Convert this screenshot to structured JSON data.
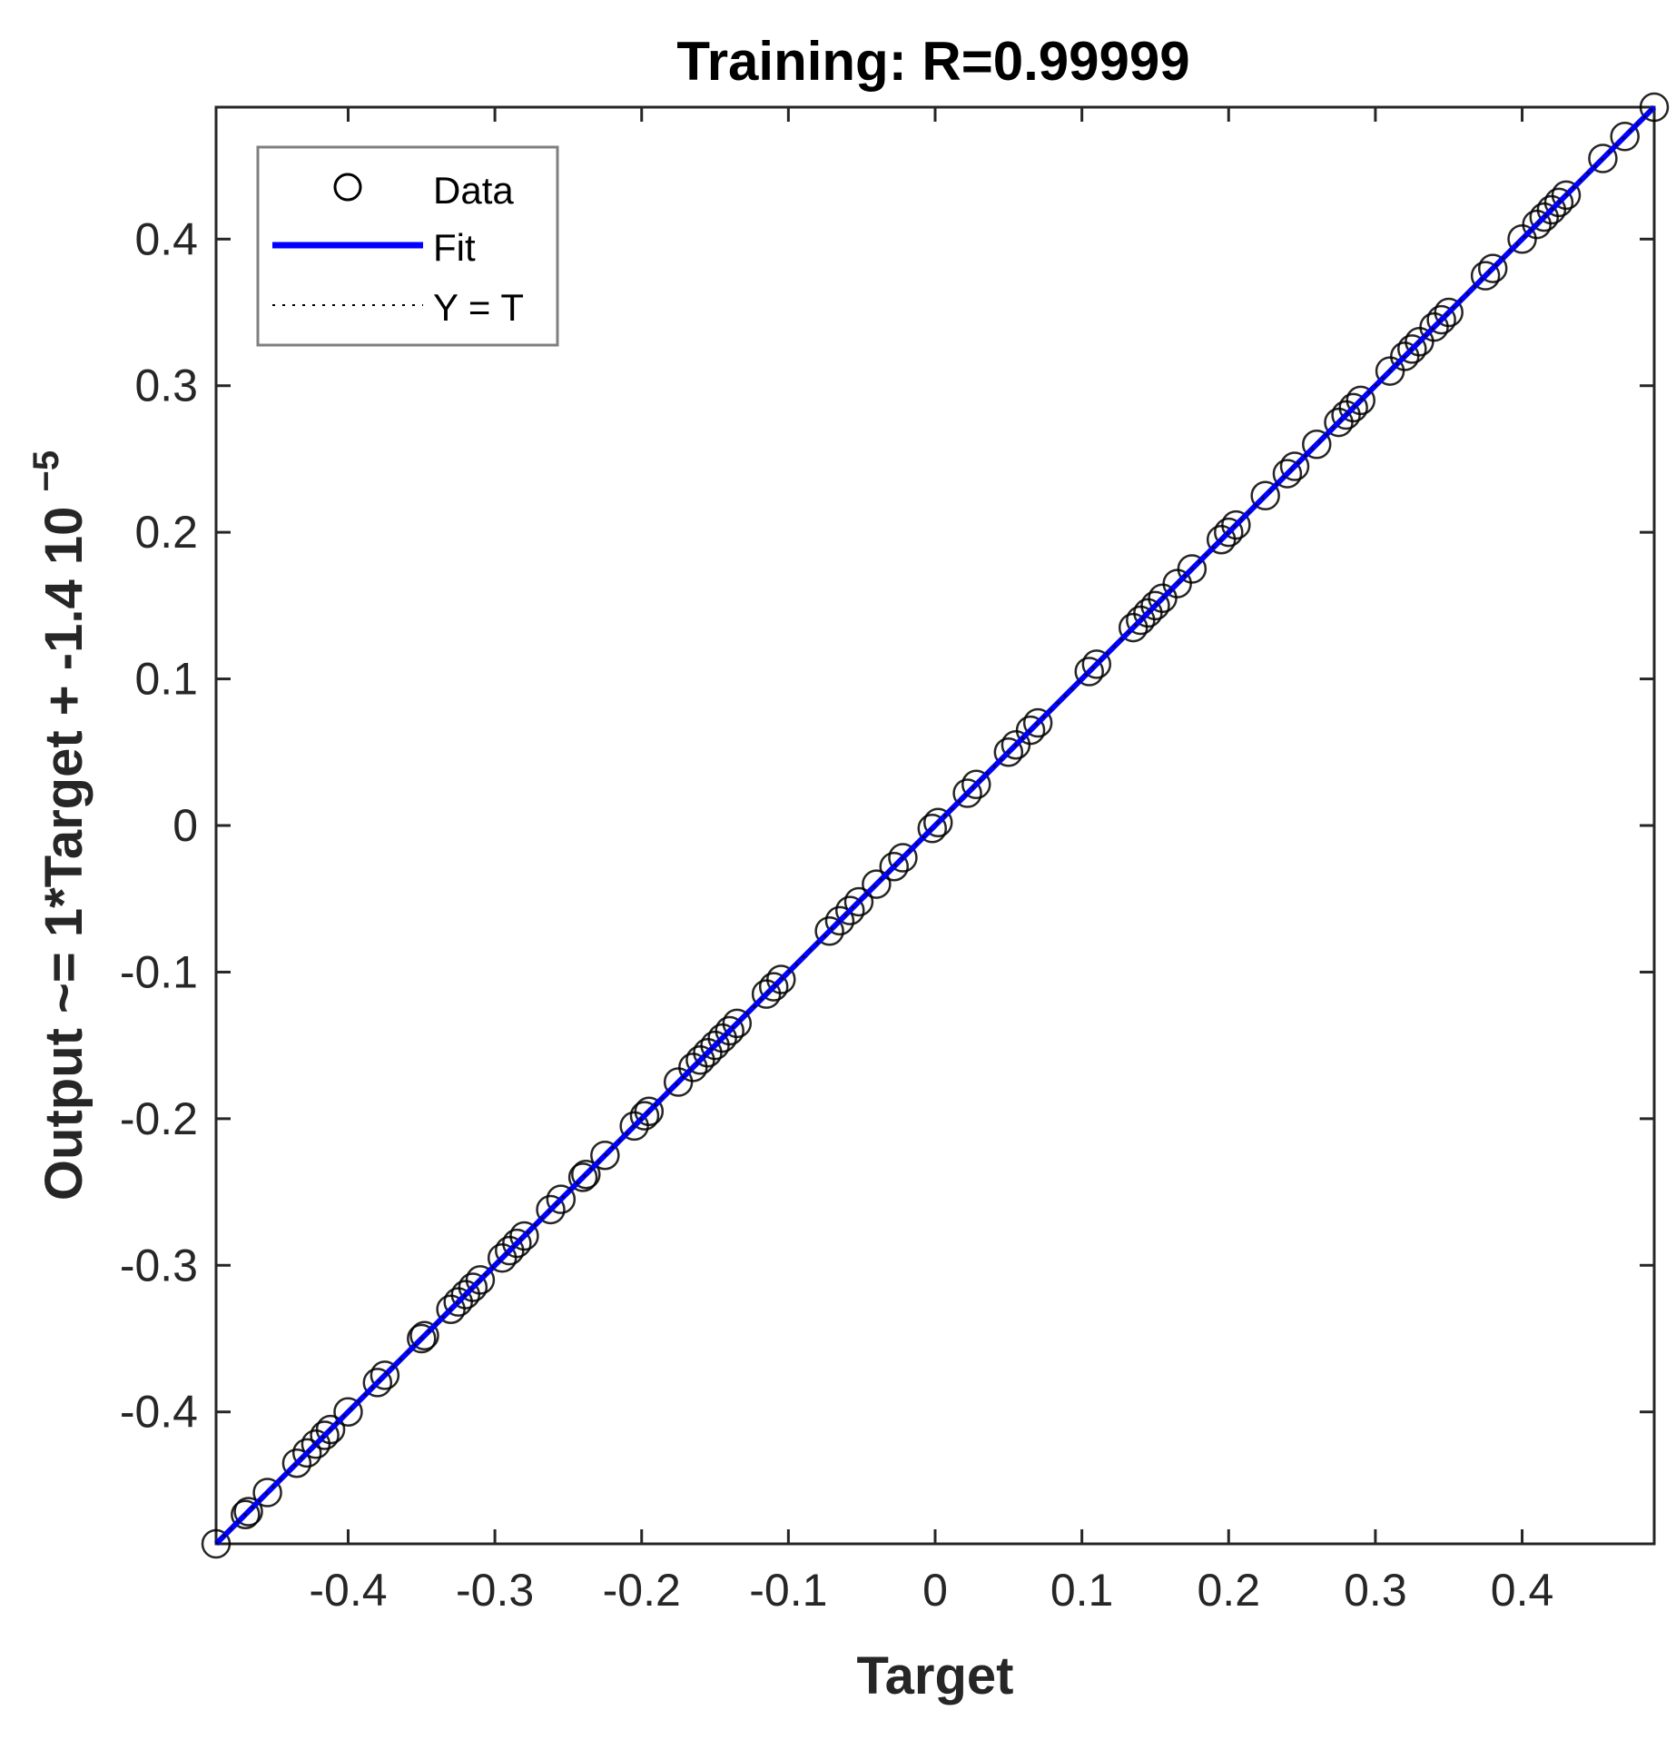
{
  "chart_data": {
    "type": "scatter",
    "title": "Training: R=0.99999",
    "xlabel": "Target",
    "ylabel": "Output ~= 1*Target + -1.4  10",
    "ylabel_exponent": "−5",
    "xlim": [
      -0.49,
      0.49
    ],
    "ylim": [
      -0.49,
      0.49
    ],
    "xticks": [
      -0.4,
      -0.3,
      -0.2,
      -0.1,
      0,
      0.1,
      0.2,
      0.3,
      0.4
    ],
    "xtick_labels": [
      "-0.4",
      "-0.3",
      "-0.2",
      "-0.1",
      "0",
      "0.1",
      "0.2",
      "0.3",
      "0.4"
    ],
    "yticks": [
      -0.4,
      -0.3,
      -0.2,
      -0.1,
      0,
      0.1,
      0.2,
      0.3,
      0.4
    ],
    "ytick_labels": [
      "-0.4",
      "-0.3",
      "-0.2",
      "-0.1",
      "0",
      "0.1",
      "0.2",
      "0.3",
      "0.4"
    ],
    "grid": false,
    "legend_position": "top-left",
    "series": [
      {
        "name": "Data",
        "kind": "markers",
        "marker": "circle",
        "color": "#000000",
        "x": [
          -0.49,
          -0.47,
          -0.468,
          -0.455,
          -0.435,
          -0.428,
          -0.422,
          -0.416,
          -0.412,
          -0.4,
          -0.38,
          -0.375,
          -0.35,
          -0.348,
          -0.33,
          -0.325,
          -0.32,
          -0.315,
          -0.31,
          -0.295,
          -0.29,
          -0.285,
          -0.28,
          -0.262,
          -0.255,
          -0.24,
          -0.238,
          -0.225,
          -0.205,
          -0.198,
          -0.195,
          -0.175,
          -0.165,
          -0.16,
          -0.155,
          -0.15,
          -0.145,
          -0.14,
          -0.135,
          -0.115,
          -0.11,
          -0.105,
          -0.072,
          -0.065,
          -0.058,
          -0.052,
          -0.04,
          -0.028,
          -0.022,
          -0.002,
          0.002,
          0.022,
          0.028,
          0.05,
          0.055,
          0.065,
          0.07,
          0.105,
          0.11,
          0.135,
          0.14,
          0.145,
          0.15,
          0.155,
          0.165,
          0.175,
          0.195,
          0.2,
          0.205,
          0.225,
          0.24,
          0.245,
          0.26,
          0.275,
          0.28,
          0.285,
          0.29,
          0.31,
          0.32,
          0.325,
          0.33,
          0.34,
          0.345,
          0.35,
          0.375,
          0.38,
          0.4,
          0.41,
          0.415,
          0.42,
          0.425,
          0.43,
          0.455,
          0.47,
          0.49
        ],
        "y": [
          -0.49,
          -0.47,
          -0.468,
          -0.455,
          -0.435,
          -0.428,
          -0.422,
          -0.416,
          -0.412,
          -0.4,
          -0.38,
          -0.375,
          -0.35,
          -0.348,
          -0.33,
          -0.325,
          -0.32,
          -0.315,
          -0.31,
          -0.295,
          -0.29,
          -0.285,
          -0.28,
          -0.262,
          -0.255,
          -0.24,
          -0.238,
          -0.225,
          -0.205,
          -0.198,
          -0.195,
          -0.175,
          -0.165,
          -0.16,
          -0.155,
          -0.15,
          -0.145,
          -0.14,
          -0.135,
          -0.115,
          -0.11,
          -0.105,
          -0.072,
          -0.065,
          -0.058,
          -0.052,
          -0.04,
          -0.028,
          -0.022,
          -0.002,
          0.002,
          0.022,
          0.028,
          0.05,
          0.055,
          0.065,
          0.07,
          0.105,
          0.11,
          0.135,
          0.14,
          0.145,
          0.15,
          0.155,
          0.165,
          0.175,
          0.195,
          0.2,
          0.205,
          0.225,
          0.24,
          0.245,
          0.26,
          0.275,
          0.28,
          0.285,
          0.29,
          0.31,
          0.32,
          0.325,
          0.33,
          0.34,
          0.345,
          0.35,
          0.375,
          0.38,
          0.4,
          0.41,
          0.415,
          0.42,
          0.425,
          0.43,
          0.455,
          0.47,
          0.49
        ]
      },
      {
        "name": "Fit",
        "kind": "line",
        "color": "#0000ff",
        "x": [
          -0.49,
          0.49
        ],
        "y": [
          -0.49,
          0.49
        ]
      },
      {
        "name": "Y = T",
        "kind": "dotted-line",
        "color": "#000000",
        "x": [
          -0.49,
          0.49
        ],
        "y": [
          -0.49,
          0.49
        ]
      }
    ]
  }
}
